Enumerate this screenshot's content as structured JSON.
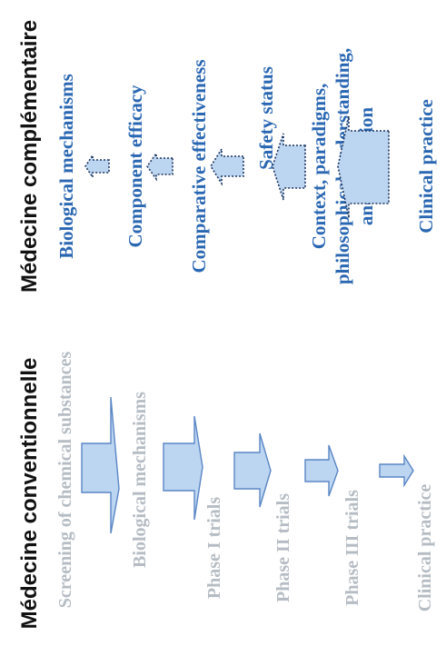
{
  "headings": {
    "left": "Médecine conventionnelle",
    "right": "Médecine complémentaire"
  },
  "conventional_steps": [
    "Screening of chemical substances",
    "Biological mechanisms",
    "Phase I trials",
    "Phase II trials",
    "Phase III trials",
    "Clinical practice"
  ],
  "complementary_steps": [
    "Biological mechanisms",
    "Component efficacy",
    "Comparative effectiveness",
    "Safety status",
    "Context, paradigms,",
    "philosophical understanding,",
    "and utilization",
    "Clinical practice"
  ],
  "colors": {
    "heading": "#111111",
    "conv_text": "#b5bcc3",
    "comp_text": "#2a67b2",
    "fill": "#bcd5f0",
    "conv_stroke": "#5a86c5",
    "comp_stroke": "#1c3560"
  }
}
